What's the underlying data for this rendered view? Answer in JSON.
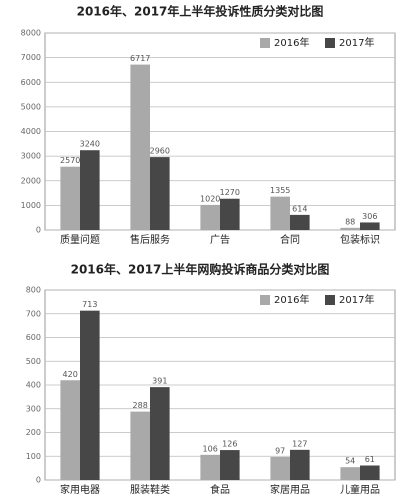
{
  "chart_data": [
    {
      "type": "bar",
      "title": "2016年、2017年上半年投诉性质分类对比图",
      "categories": [
        "质量问题",
        "售后服务",
        "广告",
        "合同",
        "包装标识"
      ],
      "series": [
        {
          "name": "2016年",
          "color": "#a9a9a9",
          "values": [
            2570,
            6717,
            1020,
            1355,
            88
          ]
        },
        {
          "name": "2017年",
          "color": "#474747",
          "values": [
            3240,
            2960,
            1270,
            614,
            306
          ]
        }
      ],
      "ylim": [
        0,
        8000
      ],
      "yticks": [
        0,
        1000,
        2000,
        3000,
        4000,
        5000,
        6000,
        7000,
        8000
      ],
      "grid": true,
      "legend": "top-right"
    },
    {
      "type": "bar",
      "title": "2016年、2017上半年网购投诉商品分类对比图",
      "categories": [
        "家用电器",
        "服装鞋类",
        "食品",
        "家居用品",
        "儿童用品"
      ],
      "series": [
        {
          "name": "2016年",
          "color": "#a9a9a9",
          "values": [
            420,
            288,
            106,
            97,
            54
          ]
        },
        {
          "name": "2017年",
          "color": "#474747",
          "values": [
            713,
            391,
            126,
            127,
            61
          ]
        }
      ],
      "ylim": [
        0,
        800
      ],
      "yticks": [
        0,
        100,
        200,
        300,
        400,
        500,
        600,
        700,
        800
      ],
      "grid": true,
      "legend": "top-right"
    }
  ]
}
